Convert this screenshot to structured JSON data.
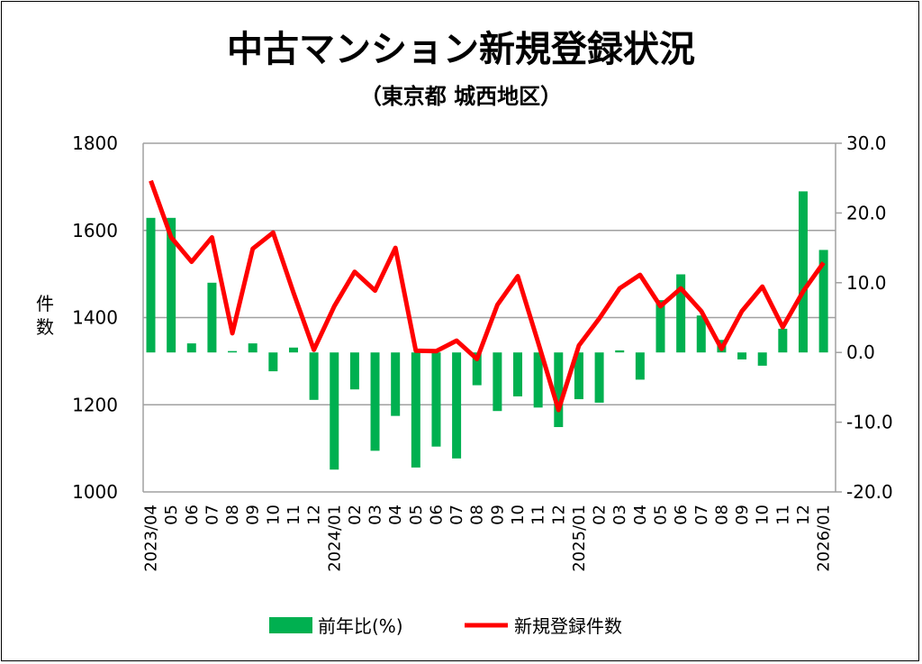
{
  "chart_data": {
    "type": "bar+line",
    "title": "中古マンション新規登録状況",
    "subtitle": "（東京都 城西地区）",
    "ylabel_left": "件数",
    "categories": [
      "2023/04",
      "05",
      "06",
      "07",
      "08",
      "09",
      "10",
      "11",
      "12",
      "2024/01",
      "02",
      "03",
      "04",
      "05",
      "06",
      "07",
      "08",
      "09",
      "10",
      "11",
      "12",
      "2025/01",
      "02",
      "03",
      "04",
      "05",
      "06",
      "07",
      "08",
      "09",
      "10",
      "11",
      "12",
      "2026/01"
    ],
    "series": [
      {
        "name": "前年比(%)",
        "type": "bar",
        "axis": "right",
        "color": "#00b050",
        "values": [
          19.3,
          19.3,
          1.3,
          10.0,
          0.2,
          1.3,
          -2.7,
          0.7,
          -6.8,
          -16.8,
          -5.3,
          -14.1,
          -9.1,
          -16.5,
          -13.5,
          -15.2,
          -4.7,
          -8.4,
          -6.3,
          -7.9,
          -10.7,
          -6.7,
          -7.2,
          0.3,
          -3.9,
          7.5,
          11.2,
          5.3,
          1.8,
          -1.0,
          -1.9,
          3.4,
          23.1,
          14.7
        ]
      },
      {
        "name": "新規登録件数",
        "type": "line",
        "axis": "left",
        "color": "#ff0000",
        "values": [
          1714,
          1584,
          1528,
          1584,
          1364,
          1558,
          1595,
          1457,
          1326,
          1426,
          1505,
          1462,
          1560,
          1324,
          1323,
          1347,
          1305,
          1429,
          1495,
          1343,
          1188,
          1336,
          1398,
          1467,
          1498,
          1426,
          1467,
          1415,
          1328,
          1415,
          1471,
          1378,
          1460,
          1526
        ]
      }
    ],
    "left_axis": {
      "range": [
        1000,
        1800
      ],
      "ticks": [
        "1000",
        "1200",
        "1400",
        "1600",
        "1800"
      ]
    },
    "right_axis": {
      "range": [
        -20,
        30
      ],
      "ticks": [
        "-20.0",
        "-10.0",
        "0.0",
        "10.0",
        "20.0",
        "30.0"
      ],
      "negative_color": "#c00000"
    },
    "grid": true,
    "legend_position": "bottom"
  }
}
